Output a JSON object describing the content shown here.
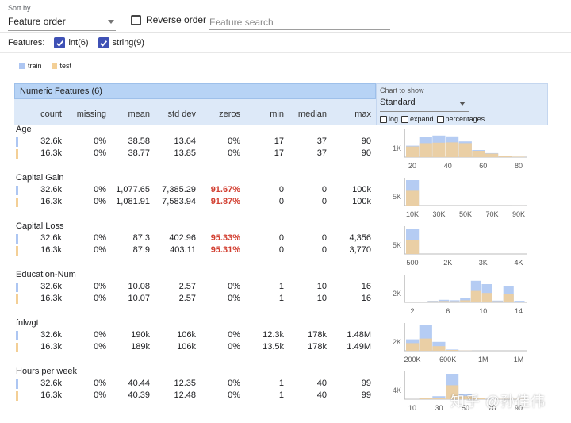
{
  "controls": {
    "sort_label": "Sort by",
    "sort_value": "Feature order",
    "reverse_label": "Reverse order",
    "search_placeholder": "Feature search",
    "features_label": "Features:",
    "int_filter": "int(6)",
    "string_filter": "string(9)"
  },
  "legend": {
    "train": "train",
    "test": "test",
    "train_color": "#adc6f2",
    "test_color": "#f3cf96"
  },
  "table": {
    "title": "Numeric Features (6)",
    "columns": [
      "count",
      "missing",
      "mean",
      "std dev",
      "zeros",
      "min",
      "median",
      "max"
    ]
  },
  "chart_panel": {
    "label": "Chart to show",
    "value": "Standard",
    "options": [
      "log",
      "expand",
      "percentages"
    ]
  },
  "features": [
    {
      "name": "Age",
      "rows": [
        [
          "32.6k",
          "0%",
          "38.58",
          "13.64",
          "0%",
          "17",
          "37",
          "90"
        ],
        [
          "16.3k",
          "0%",
          "38.77",
          "13.85",
          "0%",
          "17",
          "37",
          "90"
        ]
      ],
      "zeros_highlight": false,
      "chart_data": {
        "type": "bar",
        "ytick": "1K",
        "x_ticks": [
          "20",
          "40",
          "60",
          "80"
        ],
        "train": [
          0.45,
          0.8,
          0.85,
          0.82,
          0.62,
          0.28,
          0.16,
          0.06,
          0.02
        ],
        "test": [
          0.42,
          0.55,
          0.57,
          0.58,
          0.55,
          0.25,
          0.14,
          0.05,
          0.02
        ]
      }
    },
    {
      "name": "Capital Gain",
      "rows": [
        [
          "32.6k",
          "0%",
          "1,077.65",
          "7,385.29",
          "91.67%",
          "0",
          "0",
          "100k"
        ],
        [
          "16.3k",
          "0%",
          "1,081.91",
          "7,583.94",
          "91.87%",
          "0",
          "0",
          "100k"
        ]
      ],
      "zeros_highlight": true,
      "chart_data": {
        "type": "bar",
        "ytick": "5K",
        "x_ticks": [
          "10K",
          "30K",
          "50K",
          "70K",
          "90K"
        ],
        "train": [
          1.0,
          0,
          0,
          0,
          0,
          0,
          0,
          0,
          0.02
        ],
        "test": [
          0.58,
          0,
          0,
          0,
          0,
          0,
          0,
          0,
          0.01
        ]
      }
    },
    {
      "name": "Capital Loss",
      "rows": [
        [
          "32.6k",
          "0%",
          "87.3",
          "402.96",
          "95.33%",
          "0",
          "0",
          "4,356"
        ],
        [
          "16.3k",
          "0%",
          "87.9",
          "403.11",
          "95.31%",
          "0",
          "0",
          "3,770"
        ]
      ],
      "zeros_highlight": true,
      "chart_data": {
        "type": "bar",
        "ytick": "5K",
        "x_ticks": [
          "500",
          "2K",
          "3K",
          "4K"
        ],
        "train": [
          1.0,
          0,
          0,
          0,
          0,
          0,
          0,
          0,
          0
        ],
        "test": [
          0.55,
          0,
          0,
          0,
          0,
          0,
          0,
          0,
          0
        ]
      }
    },
    {
      "name": "Education-Num",
      "rows": [
        [
          "32.6k",
          "0%",
          "10.08",
          "2.57",
          "0%",
          "1",
          "10",
          "16"
        ],
        [
          "16.3k",
          "0%",
          "10.07",
          "2.57",
          "0%",
          "1",
          "10",
          "16"
        ]
      ],
      "zeros_highlight": false,
      "chart_data": {
        "type": "bar",
        "ytick": "2K",
        "x_ticks": [
          "2",
          "6",
          "10",
          "14"
        ],
        "train": [
          0.0,
          0.03,
          0.06,
          0.1,
          0.08,
          0.16,
          0.85,
          0.72,
          0.07,
          0.65,
          0.06
        ],
        "test": [
          0.0,
          0.02,
          0.04,
          0.05,
          0.04,
          0.08,
          0.45,
          0.37,
          0.04,
          0.32,
          0.03
        ]
      }
    },
    {
      "name": "fnlwgt",
      "rows": [
        [
          "32.6k",
          "0%",
          "190k",
          "106k",
          "0%",
          "12.3k",
          "178k",
          "1.48M"
        ],
        [
          "16.3k",
          "0%",
          "189k",
          "106k",
          "0%",
          "13.5k",
          "178k",
          "1.49M"
        ]
      ],
      "zeros_highlight": false,
      "chart_data": {
        "type": "bar",
        "ytick": "2K",
        "x_ticks": [
          "200K",
          "600K",
          "1M",
          "1M"
        ],
        "train": [
          0.45,
          1.0,
          0.35,
          0.05,
          0.01,
          0,
          0,
          0,
          0
        ],
        "test": [
          0.3,
          0.48,
          0.18,
          0.03,
          0.01,
          0,
          0,
          0,
          0
        ]
      }
    },
    {
      "name": "Hours per week",
      "rows": [
        [
          "32.6k",
          "0%",
          "40.44",
          "12.35",
          "0%",
          "1",
          "40",
          "99"
        ],
        [
          "16.3k",
          "0%",
          "40.39",
          "12.48",
          "0%",
          "1",
          "40",
          "99"
        ]
      ],
      "zeros_highlight": false,
      "chart_data": {
        "type": "bar",
        "ytick": "4K",
        "x_ticks": [
          "10",
          "30",
          "50",
          "70",
          "90"
        ],
        "train": [
          0.02,
          0.05,
          0.12,
          1.0,
          0.22,
          0.05,
          0.02,
          0.01,
          0.01
        ],
        "test": [
          0.01,
          0.03,
          0.06,
          0.55,
          0.12,
          0.03,
          0.01,
          0.01,
          0.01
        ]
      }
    }
  ],
  "watermark": "知乎 @孙佳伟"
}
